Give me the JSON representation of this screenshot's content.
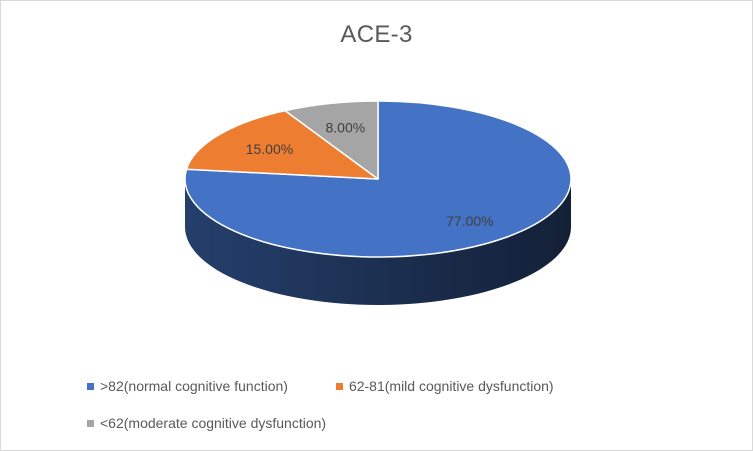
{
  "chart_data": {
    "type": "pie",
    "title": "ACE-3",
    "style": "3d",
    "labels": [
      ">82(normal cognitive function)",
      "62-81(mild cognitive dysfunction)",
      "<62(moderate cognitive dysfunction)"
    ],
    "values": [
      77,
      15,
      8
    ],
    "value_labels": [
      "77.00%",
      "15.00%",
      "8.00%"
    ],
    "colors": [
      "#4472c4",
      "#ed7d31",
      "#a5a5a5"
    ],
    "legend_position": "bottom"
  }
}
